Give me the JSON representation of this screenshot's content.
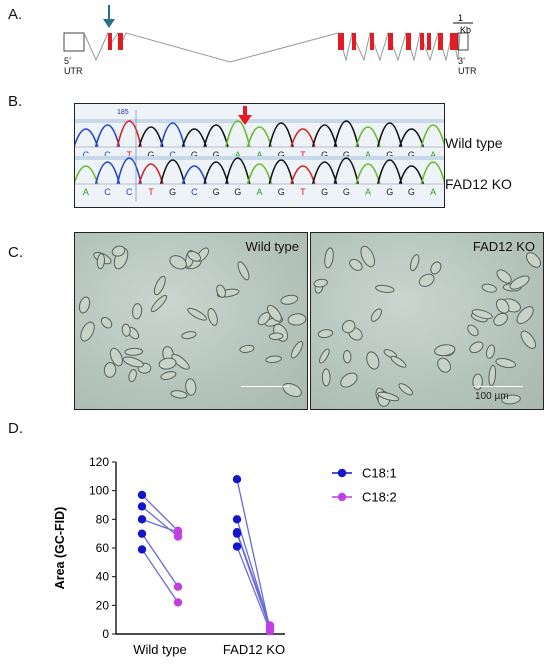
{
  "panels": {
    "a": {
      "label": "A.",
      "scale_top": "1",
      "scale_bottom": "Kb",
      "utr5": "5’ UTR",
      "utr3": "3’ UTR"
    },
    "b": {
      "label": "B.",
      "position_marker": "185",
      "top_bases": [
        "C",
        "C",
        "T",
        "G",
        "C",
        "G",
        "G",
        "A",
        "A",
        "G",
        "T",
        "G",
        "G",
        "A",
        "G",
        "G",
        "A"
      ],
      "bottom_bases": [
        "A",
        "C",
        "C",
        "T",
        "G",
        "C",
        "G",
        "G",
        "A",
        "G",
        "T",
        "G",
        "G",
        "A",
        "G",
        "G",
        "A"
      ],
      "top_label": "Wild type",
      "bottom_label": "FAD12 KO"
    },
    "c": {
      "label": "C.",
      "left_title": "Wild type",
      "right_title": "FAD12 KO",
      "scale_label": "100 µm"
    },
    "d": {
      "label": "D."
    }
  },
  "colors": {
    "exon": "#e41b23",
    "arrow_blue": "#2b6f8a",
    "arrow_red": "#e41b23",
    "c18_1": "#1515c9",
    "c18_2": "#c13fe0",
    "connector": "#6a6ad9"
  },
  "chart_data": {
    "type": "scatter",
    "ylabel": "Area (GC-FID)",
    "ylim": [
      0,
      120
    ],
    "yticks": [
      0,
      20,
      40,
      60,
      80,
      100,
      120
    ],
    "categories": [
      "Wild type",
      "FAD12 KO"
    ],
    "series": [
      {
        "name": "C18:1",
        "color": "#1515c9",
        "values": [
          [
            97,
            89,
            80,
            70,
            59
          ],
          [
            108,
            80,
            71,
            70,
            61
          ]
        ]
      },
      {
        "name": "C18:2",
        "color": "#c13fe0",
        "values": [
          [
            72,
            71,
            68,
            33,
            22
          ],
          [
            6,
            5,
            4,
            3,
            2
          ]
        ]
      }
    ],
    "pairs": [
      {
        "group": 0,
        "c18_1": 97,
        "c18_2": 72
      },
      {
        "group": 0,
        "c18_1": 89,
        "c18_2": 68
      },
      {
        "group": 0,
        "c18_1": 80,
        "c18_2": 71
      },
      {
        "group": 0,
        "c18_1": 70,
        "c18_2": 33
      },
      {
        "group": 0,
        "c18_1": 59,
        "c18_2": 22
      },
      {
        "group": 1,
        "c18_1": 108,
        "c18_2": 3
      },
      {
        "group": 1,
        "c18_1": 80,
        "c18_2": 5
      },
      {
        "group": 1,
        "c18_1": 71,
        "c18_2": 6
      },
      {
        "group": 1,
        "c18_1": 70,
        "c18_2": 4
      },
      {
        "group": 1,
        "c18_1": 61,
        "c18_2": 2
      }
    ],
    "legend_position": "right"
  }
}
